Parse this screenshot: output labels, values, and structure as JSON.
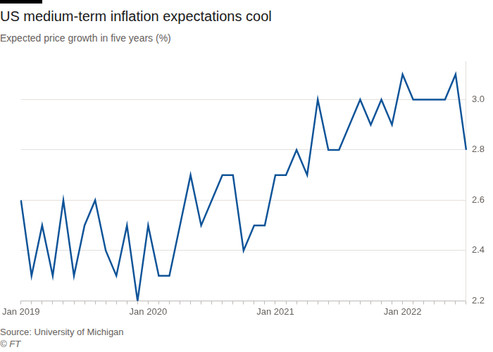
{
  "chart_data": {
    "type": "line",
    "title": "US medium-term inflation expectations cool",
    "subtitle": "Expected price growth in five years (%)",
    "source": "Source: University of Michigan",
    "credit": "© FT",
    "categories": [
      "Jan 2019",
      null,
      null,
      null,
      null,
      null,
      null,
      null,
      null,
      null,
      null,
      null,
      "Jan 2020",
      null,
      null,
      null,
      null,
      null,
      null,
      null,
      null,
      null,
      null,
      null,
      "Jan 2021",
      null,
      null,
      null,
      null,
      null,
      null,
      null,
      null,
      null,
      null,
      null,
      "Jan 2022",
      null,
      null,
      null,
      null,
      null,
      null
    ],
    "values": [
      2.6,
      2.3,
      2.5,
      2.3,
      2.6,
      2.3,
      2.5,
      2.6,
      2.4,
      2.3,
      2.5,
      2.2,
      2.5,
      2.3,
      2.3,
      2.5,
      2.7,
      2.5,
      2.6,
      2.7,
      2.7,
      2.4,
      2.5,
      2.5,
      2.7,
      2.7,
      2.8,
      2.7,
      3.0,
      2.8,
      2.8,
      2.9,
      3.0,
      2.9,
      3.0,
      2.9,
      3.1,
      3.0,
      3.0,
      3.0,
      3.0,
      3.1,
      2.8
    ],
    "color": "#0f5499",
    "ylim": [
      2.2,
      3.15
    ],
    "yticks": [
      2.2,
      2.4,
      2.6,
      2.8,
      {
        "value": 3,
        "label": "3.0"
      }
    ],
    "grid": true
  }
}
